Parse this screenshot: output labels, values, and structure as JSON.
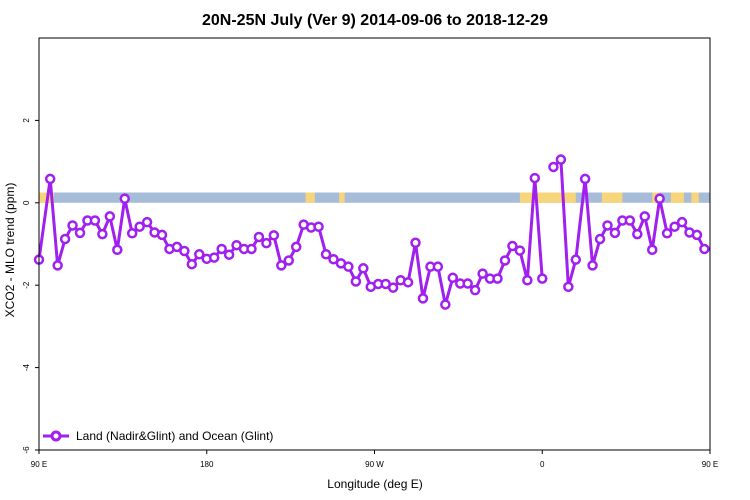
{
  "chart_data": {
    "type": "line",
    "title": "20N-25N July (Ver 9)   2014-09-06 to 2018-12-29",
    "xlabel": "Longitude (deg E)",
    "ylabel": "XCO2 - MLO trend (ppm)",
    "xlim": [
      90,
      450
    ],
    "ylim": [
      -6,
      4
    ],
    "x_ticks": [
      {
        "value": 90,
        "label": "90 E"
      },
      {
        "value": 180,
        "label": "180"
      },
      {
        "value": 270,
        "label": "90 W"
      },
      {
        "value": 360,
        "label": "0"
      },
      {
        "value": 450,
        "label": "90 E"
      },
      {
        "value": 540,
        "label": "180"
      }
    ],
    "y_ticks": [
      {
        "value": -6,
        "label": "-6"
      },
      {
        "value": -4,
        "label": "-4"
      },
      {
        "value": -2,
        "label": "-2"
      },
      {
        "value": 0,
        "label": "0"
      },
      {
        "value": 2,
        "label": "2"
      }
    ],
    "grid": false,
    "legend_position": "bottom-left",
    "land_ocean_strip": {
      "y_range": [
        0,
        0.25
      ],
      "ocean_color": "#a7bcd9",
      "land_color": "#f7d57a",
      "land_x_ranges": [
        [
          90,
          98
        ],
        [
          233,
          238
        ],
        [
          251,
          254
        ],
        [
          348,
          378
        ],
        [
          392,
          403
        ],
        [
          419,
          423
        ],
        [
          429,
          436
        ],
        [
          440,
          444
        ],
        [
          526,
          540
        ]
      ]
    },
    "series": [
      {
        "name": "Land (Nadir&Glint) and Ocean (Glint)",
        "color": "#a020f0",
        "points": [
          [
            90,
            -1.38
          ],
          [
            96,
            0.58
          ],
          [
            100,
            -1.52
          ],
          [
            104,
            -0.88
          ],
          [
            108,
            -0.55
          ],
          [
            112,
            -0.73
          ],
          [
            116,
            -0.43
          ],
          [
            120,
            -0.43
          ],
          [
            124,
            -0.76
          ],
          [
            128,
            -0.33
          ],
          [
            132,
            -1.14
          ],
          [
            136,
            0.1
          ],
          [
            140,
            -0.74
          ],
          [
            144,
            -0.58
          ],
          [
            148,
            -0.47
          ],
          [
            152,
            -0.72
          ],
          [
            156,
            -0.78
          ],
          [
            160,
            -1.12
          ],
          [
            164,
            -1.07
          ],
          [
            168,
            -1.17
          ],
          [
            172,
            -1.49
          ],
          [
            176,
            -1.25
          ],
          [
            180,
            -1.36
          ],
          [
            184,
            -1.33
          ],
          [
            188,
            -1.12
          ],
          [
            192,
            -1.26
          ],
          [
            196,
            -1.03
          ],
          [
            200,
            -1.12
          ],
          [
            204,
            -1.12
          ],
          [
            208,
            -0.83
          ],
          [
            212,
            -0.98
          ],
          [
            216,
            -0.79
          ],
          [
            220,
            -1.52
          ],
          [
            224,
            -1.4
          ],
          [
            228,
            -1.07
          ],
          [
            232,
            -0.53
          ],
          [
            236,
            -0.6
          ],
          [
            240,
            -0.58
          ],
          [
            244,
            -1.25
          ],
          [
            248,
            -1.37
          ],
          [
            252,
            -1.47
          ],
          [
            256,
            -1.55
          ],
          [
            260,
            -1.91
          ],
          [
            264,
            -1.59
          ],
          [
            268,
            -2.04
          ],
          [
            272,
            -1.97
          ],
          [
            276,
            -1.97
          ],
          [
            280,
            -2.06
          ],
          [
            284,
            -1.88
          ],
          [
            288,
            -1.93
          ],
          [
            292,
            -0.97
          ],
          [
            296,
            -2.32
          ],
          [
            300,
            -1.55
          ],
          [
            304,
            -1.55
          ],
          [
            308,
            -2.47
          ],
          [
            312,
            -1.82
          ],
          [
            316,
            -1.96
          ],
          [
            320,
            -1.96
          ],
          [
            324,
            -2.12
          ],
          [
            328,
            -1.72
          ],
          [
            332,
            -1.84
          ],
          [
            336,
            -1.84
          ],
          [
            340,
            -1.4
          ],
          [
            344,
            -1.05
          ],
          [
            348,
            -1.16
          ],
          [
            352,
            -1.88
          ],
          [
            356,
            0.6
          ],
          [
            360,
            -1.84
          ],
          null,
          [
            366,
            0.87
          ],
          [
            370,
            1.05
          ],
          [
            374,
            -2.04
          ],
          [
            378,
            -1.38
          ],
          [
            383,
            0.58
          ],
          [
            387,
            -1.52
          ],
          [
            391,
            -0.88
          ],
          [
            395,
            -0.55
          ],
          [
            399,
            -0.73
          ],
          [
            403,
            -0.43
          ],
          [
            407,
            -0.43
          ],
          [
            411,
            -0.76
          ],
          [
            415,
            -0.33
          ],
          [
            419,
            -1.14
          ],
          [
            423,
            0.1
          ],
          [
            427,
            -0.74
          ],
          [
            431,
            -0.58
          ],
          [
            435,
            -0.47
          ],
          [
            439,
            -0.72
          ],
          [
            443,
            -0.78
          ],
          [
            447,
            -1.12
          ]
        ]
      }
    ]
  }
}
